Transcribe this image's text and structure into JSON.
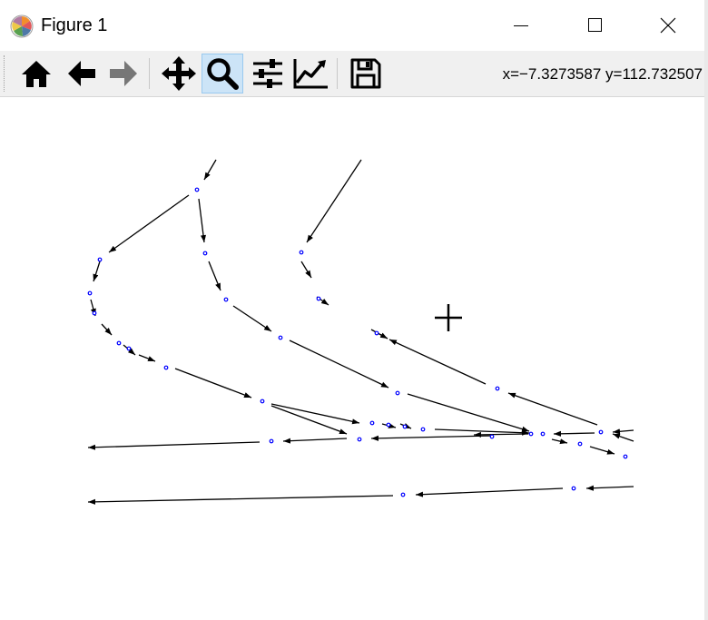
{
  "window": {
    "title": "Figure 1",
    "minimize_label": "Minimize",
    "maximize_label": "Maximize",
    "close_label": "Close"
  },
  "toolbar": {
    "tools": [
      {
        "name": "home",
        "icon": "home-icon",
        "active": false,
        "enabled": true
      },
      {
        "name": "back",
        "icon": "arrow-left-icon",
        "active": false,
        "enabled": true
      },
      {
        "name": "forward",
        "icon": "arrow-right-icon",
        "active": false,
        "enabled": false
      },
      {
        "name": "pan",
        "icon": "move-icon",
        "active": false,
        "enabled": true
      },
      {
        "name": "zoom",
        "icon": "magnifier-icon",
        "active": true,
        "enabled": true
      },
      {
        "name": "configure-subplots",
        "icon": "sliders-icon",
        "active": false,
        "enabled": true
      },
      {
        "name": "edit-axis",
        "icon": "line-chart-icon",
        "active": false,
        "enabled": true
      },
      {
        "name": "save",
        "icon": "floppy-disk-icon",
        "active": false,
        "enabled": true
      }
    ],
    "coords": "x=−7.3273587 y=112.732507",
    "active_color": "#cce4f7"
  },
  "plot": {
    "edge_color": "#000000",
    "node_color": "#0000ff",
    "crosshair": "crosshair-cursor-icon"
  }
}
